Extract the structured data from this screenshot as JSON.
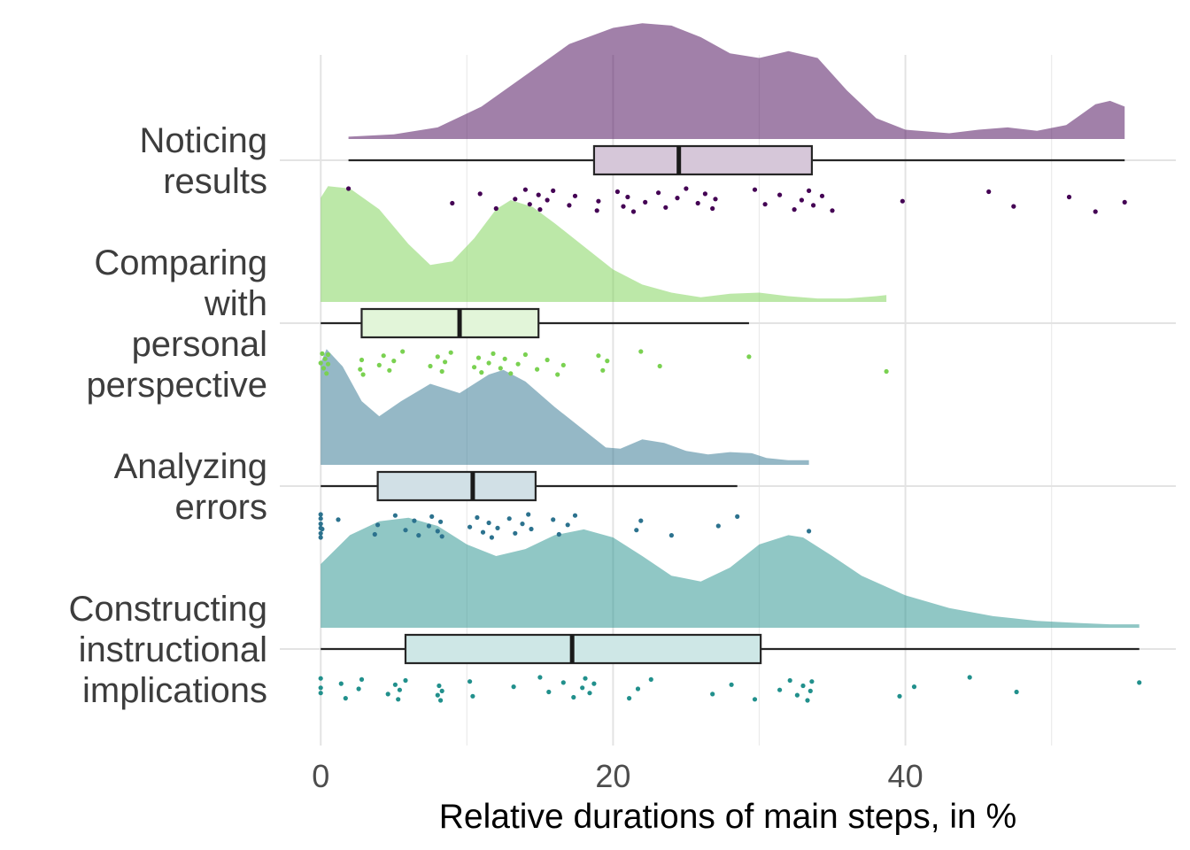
{
  "chart_data": {
    "type": "raincloud",
    "xlabel": "Relative durations of main steps, in %",
    "ylabel": "",
    "xlim": [
      -2.8,
      58.5
    ],
    "x_ticks": [
      0,
      20,
      40
    ],
    "grid": true,
    "legend": "none",
    "series": [
      {
        "name": "Noticing results",
        "label_lines": [
          "Noticing",
          "results"
        ],
        "color": "#440154",
        "box": {
          "min": 1.9,
          "q1": 18.7,
          "median": 24.5,
          "q3": 33.6,
          "max": 55.0
        },
        "density": [
          [
            1.9,
            0.02
          ],
          [
            5,
            0.04
          ],
          [
            8,
            0.1
          ],
          [
            11,
            0.28
          ],
          [
            14,
            0.55
          ],
          [
            17,
            0.82
          ],
          [
            20,
            0.96
          ],
          [
            22,
            1.0
          ],
          [
            24,
            0.98
          ],
          [
            26,
            0.88
          ],
          [
            28,
            0.74
          ],
          [
            30,
            0.7
          ],
          [
            32,
            0.76
          ],
          [
            34,
            0.7
          ],
          [
            36,
            0.42
          ],
          [
            38,
            0.18
          ],
          [
            40,
            0.08
          ],
          [
            43,
            0.05
          ],
          [
            45,
            0.08
          ],
          [
            47,
            0.1
          ],
          [
            49,
            0.07
          ],
          [
            51,
            0.12
          ],
          [
            53,
            0.3
          ],
          [
            54,
            0.33
          ],
          [
            55,
            0.28
          ]
        ],
        "points": [
          1.9,
          9.0,
          10.9,
          12.0,
          13.3,
          14.0,
          14.3,
          14.9,
          15.0,
          15.5,
          15.9,
          17.0,
          17.4,
          18.9,
          19.0,
          20.3,
          20.7,
          21.0,
          21.4,
          22.2,
          23.1,
          23.6,
          24.4,
          25.0,
          25.8,
          26.3,
          26.8,
          27.0,
          29.7,
          30.4,
          31.4,
          32.4,
          32.9,
          33.4,
          33.7,
          34.3,
          35.0,
          39.8,
          45.7,
          47.4,
          51.2,
          53.0,
          55.0
        ]
      },
      {
        "name": "Comparing with personal perspective",
        "label_lines": [
          "Comparing",
          "with",
          "personal",
          "perspective"
        ],
        "color": "#7AD151",
        "box": {
          "min": 0.0,
          "q1": 2.8,
          "median": 9.5,
          "q3": 14.9,
          "max": 29.3
        },
        "density": [
          [
            0,
            0.9
          ],
          [
            0.5,
            1.0
          ],
          [
            2,
            0.98
          ],
          [
            4,
            0.8
          ],
          [
            6,
            0.5
          ],
          [
            7.5,
            0.32
          ],
          [
            9,
            0.35
          ],
          [
            10.5,
            0.55
          ],
          [
            12,
            0.8
          ],
          [
            13,
            0.88
          ],
          [
            14.5,
            0.82
          ],
          [
            16,
            0.68
          ],
          [
            18,
            0.48
          ],
          [
            20,
            0.28
          ],
          [
            22,
            0.15
          ],
          [
            24,
            0.08
          ],
          [
            26,
            0.04
          ],
          [
            28,
            0.07
          ],
          [
            30,
            0.08
          ],
          [
            32,
            0.05
          ],
          [
            34,
            0.03
          ],
          [
            36,
            0.03
          ],
          [
            38,
            0.05
          ],
          [
            38.7,
            0.06
          ]
        ],
        "points": [
          0.0,
          0.1,
          0.2,
          0.3,
          0.4,
          0.5,
          0.5,
          2.7,
          2.8,
          2.9,
          4.0,
          4.3,
          4.7,
          5.0,
          5.6,
          7.5,
          8.0,
          8.3,
          8.5,
          8.9,
          10.5,
          10.8,
          11.0,
          11.5,
          11.8,
          12.3,
          12.6,
          13.0,
          13.5,
          14.0,
          14.8,
          15.5,
          16.2,
          16.6,
          19.0,
          19.3,
          19.6,
          21.9,
          23.2,
          29.3,
          38.7
        ]
      },
      {
        "name": "Analyzing errors",
        "label_lines": [
          "Analyzing",
          "errors"
        ],
        "color": "#2C728E",
        "box": {
          "min": 0.0,
          "q1": 3.9,
          "median": 10.4,
          "q3": 14.7,
          "max": 28.5
        },
        "density": [
          [
            0,
            0.88
          ],
          [
            0.4,
            1.0
          ],
          [
            1.5,
            0.85
          ],
          [
            2.8,
            0.55
          ],
          [
            4,
            0.42
          ],
          [
            5.5,
            0.55
          ],
          [
            7.5,
            0.7
          ],
          [
            9.5,
            0.62
          ],
          [
            11.5,
            0.78
          ],
          [
            12.5,
            0.82
          ],
          [
            14,
            0.72
          ],
          [
            16,
            0.5
          ],
          [
            18,
            0.3
          ],
          [
            19.5,
            0.15
          ],
          [
            20.5,
            0.14
          ],
          [
            22,
            0.22
          ],
          [
            23.5,
            0.19
          ],
          [
            25,
            0.12
          ],
          [
            26.5,
            0.09
          ],
          [
            28,
            0.11
          ],
          [
            29.5,
            0.1
          ],
          [
            30.5,
            0.06
          ],
          [
            32,
            0.04
          ],
          [
            33.4,
            0.04
          ]
        ],
        "points": [
          0.0,
          0.0,
          0.0,
          0.0,
          0.0,
          0.0,
          0.1,
          1.2,
          3.7,
          3.9,
          5.1,
          5.8,
          6.4,
          6.7,
          7.4,
          7.6,
          8.0,
          8.2,
          8.3,
          10.2,
          10.7,
          11.1,
          11.5,
          11.7,
          12.1,
          12.9,
          13.3,
          13.8,
          14.2,
          14.4,
          15.9,
          16.3,
          16.9,
          17.4,
          21.6,
          21.9,
          24.0,
          27.2,
          28.5,
          33.4
        ]
      },
      {
        "name": "Constructing instructional implications",
        "label_lines": [
          "Constructing",
          "instructional",
          "implications"
        ],
        "color": "#21908C",
        "box": {
          "min": 0.0,
          "q1": 5.8,
          "median": 17.2,
          "q3": 30.1,
          "max": 56.0
        },
        "density": [
          [
            0,
            0.55
          ],
          [
            2,
            0.8
          ],
          [
            4,
            0.92
          ],
          [
            6,
            0.95
          ],
          [
            8,
            0.88
          ],
          [
            10,
            0.72
          ],
          [
            12,
            0.62
          ],
          [
            14,
            0.68
          ],
          [
            16,
            0.8
          ],
          [
            18,
            0.85
          ],
          [
            20,
            0.78
          ],
          [
            22,
            0.62
          ],
          [
            24,
            0.45
          ],
          [
            26,
            0.4
          ],
          [
            28,
            0.52
          ],
          [
            30,
            0.72
          ],
          [
            32,
            0.8
          ],
          [
            33,
            0.78
          ],
          [
            35,
            0.62
          ],
          [
            37,
            0.45
          ],
          [
            40,
            0.28
          ],
          [
            43,
            0.17
          ],
          [
            46,
            0.1
          ],
          [
            49,
            0.06
          ],
          [
            52,
            0.04
          ],
          [
            54,
            0.03
          ],
          [
            56,
            0.03
          ]
        ],
        "points": [
          0.0,
          0.0,
          0.0,
          1.4,
          1.7,
          2.6,
          2.8,
          4.6,
          5.1,
          5.3,
          5.4,
          5.8,
          8.0,
          8.1,
          8.2,
          8.3,
          10.2,
          10.4,
          13.2,
          15.0,
          15.6,
          16.6,
          17.3,
          17.9,
          18.1,
          18.4,
          18.7,
          21.1,
          21.7,
          22.6,
          26.8,
          28.1,
          29.7,
          31.4,
          32.1,
          32.6,
          33.0,
          33.3,
          33.5,
          33.6,
          39.6,
          40.6,
          44.4,
          47.6,
          56.0
        ]
      }
    ]
  }
}
